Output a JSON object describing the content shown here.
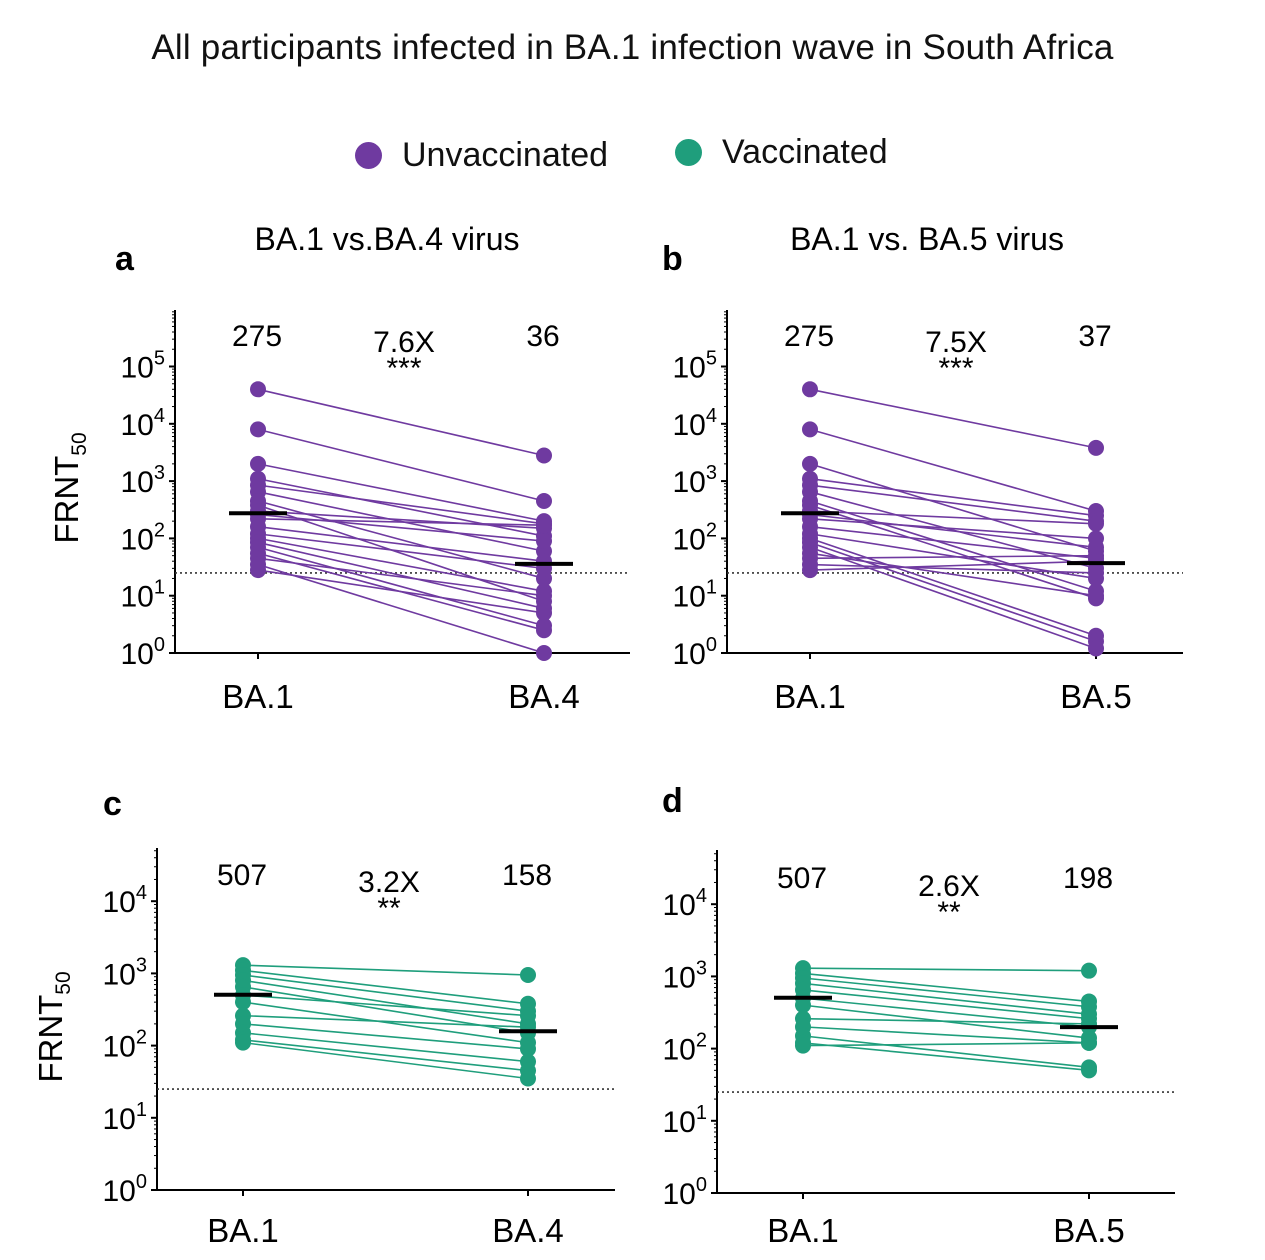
{
  "title": "All participants infected in BA.1 infection wave in South Africa",
  "legend": [
    {
      "label": "Unvaccinated",
      "color": "#6f3aa0"
    },
    {
      "label": "Vaccinated",
      "color": "#1f9e7c"
    }
  ],
  "chart_data": [
    {
      "panel": "a",
      "type": "scatter",
      "subtitle": "BA.1 vs.BA.4 virus",
      "ylabel": "FRNT50",
      "yscale": "log",
      "ylim": [
        1,
        1000000
      ],
      "yticks": [
        "10^0",
        "10^1",
        "10^2",
        "10^3",
        "10^4",
        "10^5"
      ],
      "categories": [
        "BA.1",
        "BA.4"
      ],
      "series_name": "Unvaccinated",
      "color": "#6f3aa0",
      "gmt": [
        275,
        36
      ],
      "fold_change": "7.6X",
      "significance": "***",
      "detection_limit": 25,
      "pairs": [
        [
          40000,
          2800
        ],
        [
          8000,
          450
        ],
        [
          2000,
          200
        ],
        [
          1100,
          110
        ],
        [
          850,
          180
        ],
        [
          650,
          60
        ],
        [
          450,
          20
        ],
        [
          380,
          8
        ],
        [
          300,
          150
        ],
        [
          260,
          90
        ],
        [
          220,
          170
        ],
        [
          160,
          40
        ],
        [
          120,
          30
        ],
        [
          100,
          12
        ],
        [
          85,
          6
        ],
        [
          70,
          3
        ],
        [
          55,
          2.5
        ],
        [
          45,
          10
        ],
        [
          35,
          1
        ],
        [
          28,
          5
        ]
      ]
    },
    {
      "panel": "b",
      "type": "scatter",
      "subtitle": "BA.1 vs. BA.5 virus",
      "ylabel": "",
      "yscale": "log",
      "ylim": [
        1,
        1000000
      ],
      "yticks": [
        "10^0",
        "10^1",
        "10^2",
        "10^3",
        "10^4",
        "10^5"
      ],
      "categories": [
        "BA.1",
        "BA.5"
      ],
      "series_name": "Unvaccinated",
      "color": "#6f3aa0",
      "gmt": [
        275,
        37
      ],
      "fold_change": "7.5X",
      "significance": "***",
      "detection_limit": 25,
      "pairs": [
        [
          40000,
          3800
        ],
        [
          8000,
          300
        ],
        [
          2000,
          60
        ],
        [
          1100,
          250
        ],
        [
          850,
          200
        ],
        [
          650,
          30
        ],
        [
          450,
          12
        ],
        [
          380,
          9
        ],
        [
          300,
          180
        ],
        [
          260,
          70
        ],
        [
          220,
          100
        ],
        [
          160,
          45
        ],
        [
          120,
          20
        ],
        [
          100,
          2
        ],
        [
          85,
          1.6
        ],
        [
          70,
          1.2
        ],
        [
          55,
          10
        ],
        [
          45,
          50
        ],
        [
          35,
          25
        ],
        [
          28,
          40
        ]
      ]
    },
    {
      "panel": "c",
      "type": "scatter",
      "subtitle": "",
      "ylabel": "FRNT50",
      "yscale": "log",
      "ylim": [
        1,
        50000
      ],
      "yticks": [
        "10^0",
        "10^1",
        "10^2",
        "10^3",
        "10^4"
      ],
      "categories": [
        "BA.1",
        "BA.4"
      ],
      "series_name": "Vaccinated",
      "color": "#1f9e7c",
      "gmt": [
        507,
        158
      ],
      "fold_change": "3.2X",
      "significance": "**",
      "detection_limit": 25,
      "pairs": [
        [
          1300,
          950
        ],
        [
          1100,
          380
        ],
        [
          950,
          300
        ],
        [
          800,
          200
        ],
        [
          650,
          150
        ],
        [
          500,
          260
        ],
        [
          400,
          110
        ],
        [
          260,
          180
        ],
        [
          200,
          90
        ],
        [
          150,
          60
        ],
        [
          120,
          45
        ],
        [
          110,
          35
        ]
      ]
    },
    {
      "panel": "d",
      "type": "scatter",
      "subtitle": "",
      "ylabel": "",
      "yscale": "log",
      "ylim": [
        1,
        50000
      ],
      "yticks": [
        "10^0",
        "10^1",
        "10^2",
        "10^3",
        "10^4"
      ],
      "categories": [
        "BA.1",
        "BA.5"
      ],
      "series_name": "Vaccinated",
      "color": "#1f9e7c",
      "gmt": [
        507,
        198
      ],
      "fold_change": "2.6X",
      "significance": "**",
      "detection_limit": 25,
      "pairs": [
        [
          1300,
          1200
        ],
        [
          1100,
          450
        ],
        [
          950,
          380
        ],
        [
          800,
          300
        ],
        [
          650,
          260
        ],
        [
          500,
          200
        ],
        [
          400,
          140
        ],
        [
          260,
          220
        ],
        [
          200,
          120
        ],
        [
          150,
          55
        ],
        [
          120,
          50
        ],
        [
          110,
          120
        ]
      ]
    }
  ]
}
